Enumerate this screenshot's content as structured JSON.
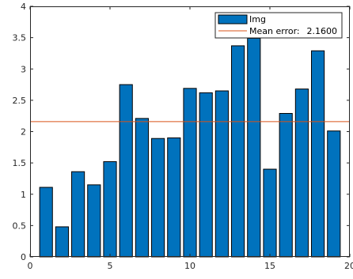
{
  "chart_data": {
    "type": "bar",
    "x": [
      1,
      2,
      3,
      4,
      5,
      6,
      7,
      8,
      9,
      10,
      11,
      12,
      13,
      14,
      15,
      16,
      17,
      18,
      19
    ],
    "values": [
      1.11,
      0.48,
      1.36,
      1.15,
      1.52,
      2.75,
      2.21,
      1.89,
      1.9,
      2.69,
      2.62,
      2.65,
      3.37,
      3.49,
      1.4,
      2.29,
      2.68,
      3.29,
      2.01
    ],
    "xlim": [
      0,
      20
    ],
    "ylim": [
      0,
      4
    ],
    "x_ticks": [
      "0",
      "5",
      "10",
      "15",
      "20"
    ],
    "y_ticks": [
      "0",
      "0.5",
      "1",
      "1.5",
      "2",
      "2.5",
      "3",
      "3.5",
      "4"
    ],
    "mean_line": 2.16,
    "grid": false,
    "legend_position": "top-right",
    "series": [
      {
        "name": "Img",
        "color": "#0072BD"
      }
    ],
    "reference_line": {
      "label": "Mean error:",
      "value_text": "2.1600",
      "color": "#D95319"
    },
    "colors": {
      "bar_fill": "#0072BD",
      "bar_edge": "#000000",
      "mean_line": "#D95319",
      "axis": "#262626"
    }
  }
}
